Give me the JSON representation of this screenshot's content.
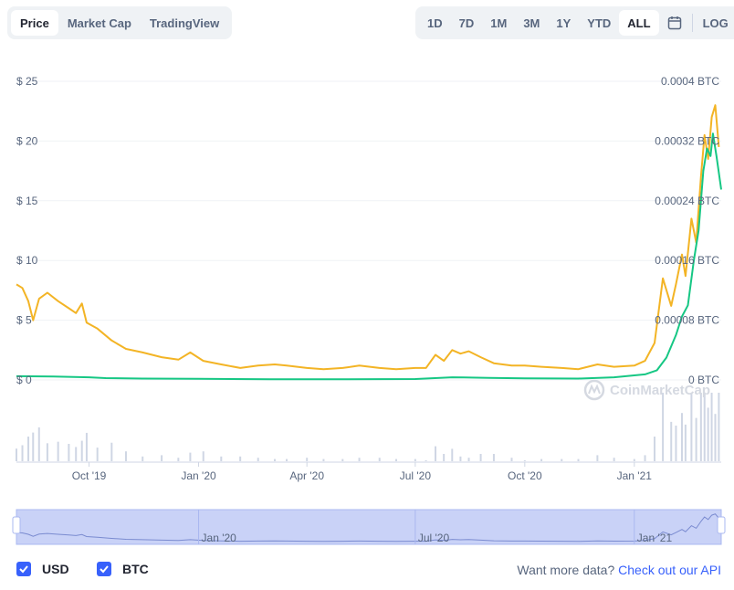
{
  "tabs": [
    "Price",
    "Market Cap",
    "TradingView"
  ],
  "active_tab": "Price",
  "ranges": [
    "1D",
    "7D",
    "1M",
    "3M",
    "1Y",
    "YTD",
    "ALL"
  ],
  "active_range": "ALL",
  "log_label": "LOG",
  "watermark": "CoinMarketCap",
  "footer": {
    "usd_label": "USD",
    "btc_label": "BTC",
    "want_more": "Want more data?",
    "api_link": "Check out our API"
  },
  "colors": {
    "usd": "#f3b425",
    "btc": "#16c784",
    "volume": "#cfd6e4",
    "navigator_fill": "#c9d2f7",
    "accent": "#3861fb"
  },
  "chart_data": {
    "type": "line",
    "x_range": [
      "2019-08-01",
      "2021-03-15"
    ],
    "x_ticks": [
      {
        "label": "Oct '19",
        "date": "2019-10-01"
      },
      {
        "label": "Jan '20",
        "date": "2020-01-01"
      },
      {
        "label": "Apr '20",
        "date": "2020-04-01"
      },
      {
        "label": "Jul '20",
        "date": "2020-07-01"
      },
      {
        "label": "Oct '20",
        "date": "2020-10-01"
      },
      {
        "label": "Jan '21",
        "date": "2021-01-01"
      }
    ],
    "y_left": {
      "ticks": [
        "$ 0",
        "$ 5",
        "$ 10",
        "$ 15",
        "$ 20",
        "$ 25"
      ],
      "range": [
        0,
        25
      ]
    },
    "y_right": {
      "ticks": [
        "0 BTC",
        "0.00008 BTC",
        "0.00016 BTC",
        "0.00024 BTC",
        "0.00032 BTC",
        "0.0004 BTC"
      ],
      "range": [
        0,
        0.0004
      ]
    },
    "navigator_ticks": [
      "Jan '20",
      "Jul '20",
      "Jan '21"
    ],
    "series": [
      {
        "name": "USD",
        "axis": "left",
        "points": [
          [
            "2019-08-01",
            8.0
          ],
          [
            "2019-08-06",
            7.7
          ],
          [
            "2019-08-11",
            6.6
          ],
          [
            "2019-08-15",
            5.0
          ],
          [
            "2019-08-20",
            6.8
          ],
          [
            "2019-08-27",
            7.3
          ],
          [
            "2019-09-05",
            6.6
          ],
          [
            "2019-09-14",
            6.0
          ],
          [
            "2019-09-20",
            5.6
          ],
          [
            "2019-09-25",
            6.4
          ],
          [
            "2019-09-29",
            4.8
          ],
          [
            "2019-10-08",
            4.3
          ],
          [
            "2019-10-20",
            3.3
          ],
          [
            "2019-11-01",
            2.6
          ],
          [
            "2019-11-15",
            2.3
          ],
          [
            "2019-12-01",
            1.9
          ],
          [
            "2019-12-15",
            1.7
          ],
          [
            "2019-12-25",
            2.3
          ],
          [
            "2020-01-05",
            1.6
          ],
          [
            "2020-01-20",
            1.3
          ],
          [
            "2020-02-05",
            1.0
          ],
          [
            "2020-02-20",
            1.2
          ],
          [
            "2020-03-05",
            1.3
          ],
          [
            "2020-03-15",
            1.2
          ],
          [
            "2020-04-01",
            1.0
          ],
          [
            "2020-04-15",
            0.9
          ],
          [
            "2020-05-01",
            1.0
          ],
          [
            "2020-05-15",
            1.2
          ],
          [
            "2020-06-01",
            1.0
          ],
          [
            "2020-06-15",
            0.9
          ],
          [
            "2020-07-01",
            1.0
          ],
          [
            "2020-07-10",
            1.0
          ],
          [
            "2020-07-18",
            2.1
          ],
          [
            "2020-07-25",
            1.6
          ],
          [
            "2020-08-01",
            2.5
          ],
          [
            "2020-08-08",
            2.2
          ],
          [
            "2020-08-15",
            2.4
          ],
          [
            "2020-08-25",
            1.9
          ],
          [
            "2020-09-05",
            1.4
          ],
          [
            "2020-09-20",
            1.2
          ],
          [
            "2020-10-01",
            1.2
          ],
          [
            "2020-10-15",
            1.1
          ],
          [
            "2020-11-01",
            1.0
          ],
          [
            "2020-11-15",
            0.9
          ],
          [
            "2020-12-01",
            1.3
          ],
          [
            "2020-12-15",
            1.1
          ],
          [
            "2021-01-01",
            1.2
          ],
          [
            "2021-01-10",
            1.6
          ],
          [
            "2021-01-18",
            3.1
          ],
          [
            "2021-01-25",
            8.5
          ],
          [
            "2021-02-01",
            6.2
          ],
          [
            "2021-02-05",
            8.0
          ],
          [
            "2021-02-10",
            10.5
          ],
          [
            "2021-02-13",
            8.7
          ],
          [
            "2021-02-18",
            13.5
          ],
          [
            "2021-02-22",
            11.5
          ],
          [
            "2021-02-26",
            17.0
          ],
          [
            "2021-03-01",
            20.5
          ],
          [
            "2021-03-04",
            18.5
          ],
          [
            "2021-03-07",
            22.0
          ],
          [
            "2021-03-10",
            23.0
          ],
          [
            "2021-03-13",
            19.5
          ]
        ]
      },
      {
        "name": "BTC",
        "axis": "right",
        "points": [
          [
            "2019-08-01",
            5e-06
          ],
          [
            "2019-09-01",
            4.5e-06
          ],
          [
            "2019-10-01",
            3.5e-06
          ],
          [
            "2019-10-15",
            2.5e-06
          ],
          [
            "2019-11-15",
            1.8e-06
          ],
          [
            "2020-01-01",
            1.5e-06
          ],
          [
            "2020-03-01",
            1e-06
          ],
          [
            "2020-05-01",
            9e-07
          ],
          [
            "2020-07-01",
            1.2e-06
          ],
          [
            "2020-08-01",
            3.5e-06
          ],
          [
            "2020-09-01",
            2.8e-06
          ],
          [
            "2020-10-01",
            2.2e-06
          ],
          [
            "2020-11-15",
            1.8e-06
          ],
          [
            "2020-12-15",
            3.5e-06
          ],
          [
            "2021-01-10",
            7.5e-06
          ],
          [
            "2021-01-20",
            1.3e-05
          ],
          [
            "2021-01-28",
            3e-05
          ],
          [
            "2021-02-05",
            6e-05
          ],
          [
            "2021-02-10",
            8.5e-05
          ],
          [
            "2021-02-15",
            0.0001
          ],
          [
            "2021-02-20",
            0.00016
          ],
          [
            "2021-02-24",
            0.0002
          ],
          [
            "2021-02-28",
            0.00028
          ],
          [
            "2021-03-03",
            0.00031
          ],
          [
            "2021-03-06",
            0.0003
          ],
          [
            "2021-03-08",
            0.00033
          ],
          [
            "2021-03-11",
            0.0003
          ],
          [
            "2021-03-15",
            0.000255
          ]
        ]
      }
    ]
  }
}
